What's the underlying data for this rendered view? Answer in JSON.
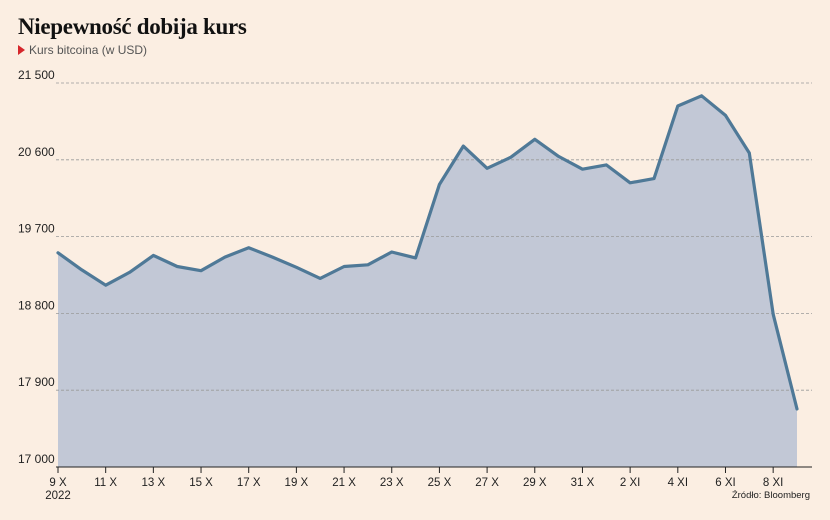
{
  "chart_data": {
    "type": "area",
    "title": "Niepewność dobija kurs",
    "subtitle": "Kurs bitcoina (w USD)",
    "source": "Źródło: Bloomberg",
    "ylim": [
      17000,
      21500
    ],
    "yticks": [
      17000,
      17900,
      18800,
      19700,
      20600,
      21500
    ],
    "ytick_labels": [
      "17 000",
      "17 900",
      "18 800",
      "19 700",
      "20 600",
      "21 500"
    ],
    "xticks": [
      {
        "i": 0,
        "label": "9 X",
        "sub": "2022"
      },
      {
        "i": 2,
        "label": "11 X"
      },
      {
        "i": 4,
        "label": "13 X"
      },
      {
        "i": 6,
        "label": "15 X"
      },
      {
        "i": 8,
        "label": "17 X"
      },
      {
        "i": 10,
        "label": "19 X"
      },
      {
        "i": 12,
        "label": "21 X"
      },
      {
        "i": 14,
        "label": "23 X"
      },
      {
        "i": 16,
        "label": "25 X"
      },
      {
        "i": 18,
        "label": "27 X"
      },
      {
        "i": 20,
        "label": "29 X"
      },
      {
        "i": 22,
        "label": "31 X"
      },
      {
        "i": 24,
        "label": "2 XI"
      },
      {
        "i": 26,
        "label": "4 XI"
      },
      {
        "i": 28,
        "label": "6 XI"
      },
      {
        "i": 30,
        "label": "8 XI"
      }
    ],
    "x": [
      "9 X",
      "10 X",
      "11 X",
      "12 X",
      "13 X",
      "14 X",
      "15 X",
      "16 X",
      "17 X",
      "18 X",
      "19 X",
      "20 X",
      "21 X",
      "22 X",
      "23 X",
      "24 X",
      "25 X",
      "26 X",
      "27 X",
      "28 X",
      "29 X",
      "30 X",
      "31 X",
      "1 XI",
      "2 XI",
      "3 XI",
      "4 XI",
      "5 XI",
      "6 XI",
      "7 XI",
      "8 XI",
      "9 XI"
    ],
    "values": [
      19510,
      19310,
      19130,
      19280,
      19480,
      19350,
      19300,
      19460,
      19570,
      19460,
      19340,
      19210,
      19350,
      19370,
      19520,
      19450,
      20310,
      20760,
      20500,
      20630,
      20840,
      20640,
      20490,
      20540,
      20330,
      20380,
      21230,
      21350,
      21120,
      20680,
      18790,
      17680
    ],
    "colors": {
      "line": "#4f7997",
      "fill": "#c2c8d6",
      "grid": "#9a9a9a",
      "axis": "#222222"
    }
  }
}
